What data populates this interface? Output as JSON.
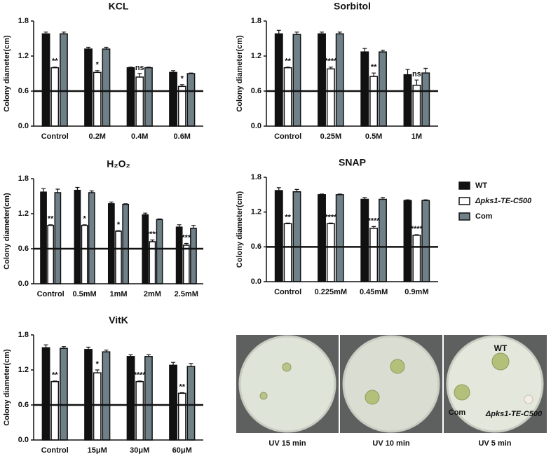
{
  "chart_data": [
    {
      "type": "bar",
      "title": "KCL",
      "ylabel": "Colony diameter(cm)",
      "categories": [
        "Control",
        "0.2M",
        "0.4M",
        "0.6M"
      ],
      "series": [
        {
          "values": [
            1.58,
            1.32,
            1.0,
            0.92
          ],
          "errors": [
            0.03,
            0.03,
            0.01,
            0.03
          ]
        },
        {
          "values": [
            1.0,
            0.92,
            0.84,
            0.68
          ],
          "errors": [
            0.01,
            0.03,
            0.06,
            0.03
          ]
        },
        {
          "values": [
            1.58,
            1.32,
            1.0,
            0.9
          ],
          "errors": [
            0.03,
            0.03,
            0.01,
            0.01
          ]
        }
      ],
      "annotations": [
        "**",
        "*",
        "ns",
        "*"
      ],
      "hline": 0.6,
      "ylim": [
        0,
        1.8
      ],
      "yticks": [
        {
          "value": 0,
          "label": "0.0"
        },
        0.6,
        1.2,
        1.8
      ]
    },
    {
      "type": "bar",
      "title": "Sorbitol",
      "ylabel": "Colony diameter(cm)",
      "categories": [
        "Control",
        "0.25M",
        "0.5M",
        "1M"
      ],
      "series": [
        {
          "values": [
            1.58,
            1.58,
            1.27,
            0.88
          ],
          "errors": [
            0.06,
            0.03,
            0.06,
            0.09
          ]
        },
        {
          "values": [
            1.0,
            0.98,
            0.85,
            0.7
          ],
          "errors": [
            0.01,
            0.03,
            0.06,
            0.09
          ]
        },
        {
          "values": [
            1.57,
            1.58,
            1.27,
            0.91
          ],
          "errors": [
            0.04,
            0.03,
            0.03,
            0.08
          ]
        }
      ],
      "annotations": [
        "**",
        "****",
        "**",
        "ns"
      ],
      "hline": 0.6,
      "ylim": [
        0,
        1.8
      ],
      "yticks": [
        {
          "value": 0,
          "label": "0.0"
        },
        0.6,
        1.2,
        1.8
      ]
    },
    {
      "type": "bar",
      "title": "H₂O₂",
      "ylabel": "Colony diameter(cm)",
      "categories": [
        "Control",
        "0.5mM",
        "1mM",
        "2mM",
        "2.5mM"
      ],
      "series": [
        {
          "values": [
            1.57,
            1.6,
            1.37,
            1.18,
            0.97
          ],
          "errors": [
            0.06,
            0.05,
            0.03,
            0.03,
            0.04
          ]
        },
        {
          "values": [
            1.0,
            1.0,
            0.9,
            0.72,
            0.66
          ],
          "errors": [
            0.01,
            0.01,
            0.01,
            0.03,
            0.03
          ]
        },
        {
          "values": [
            1.56,
            1.56,
            1.36,
            1.1,
            0.95
          ],
          "errors": [
            0.06,
            0.03,
            0.01,
            0.01,
            0.05
          ]
        }
      ],
      "annotations": [
        "**",
        "*",
        "*",
        "****",
        "***"
      ],
      "hline": 0.6,
      "ylim": [
        0,
        1.8
      ],
      "yticks": [
        {
          "value": 0,
          "label": "0.0"
        },
        0.6,
        1.2,
        1.8
      ]
    },
    {
      "type": "bar",
      "title": "SNAP",
      "ylabel": "Colony diameter(cm)",
      "categories": [
        "Control",
        "0.225mM",
        "0.45mM",
        "0.9mM"
      ],
      "series": [
        {
          "values": [
            1.57,
            1.5,
            1.42,
            1.4
          ],
          "errors": [
            0.05,
            0.01,
            0.03,
            0.01
          ]
        },
        {
          "values": [
            1.0,
            1.0,
            0.92,
            0.8
          ],
          "errors": [
            0.01,
            0.01,
            0.03,
            0.01
          ]
        },
        {
          "values": [
            1.55,
            1.5,
            1.42,
            1.4
          ],
          "errors": [
            0.04,
            0.01,
            0.03,
            0.01
          ]
        }
      ],
      "annotations": [
        "**",
        "****",
        "****",
        "****"
      ],
      "hline": 0.6,
      "ylim": [
        0,
        1.8
      ],
      "yticks": [
        {
          "value": 0,
          "label": "0.0"
        },
        0.6,
        1.2,
        1.8
      ]
    },
    {
      "type": "bar",
      "title": "VitK",
      "ylabel": "Colony diameter(cm)",
      "categories": [
        "Control",
        "15μM",
        "30μM",
        "60μM"
      ],
      "series": [
        {
          "values": [
            1.58,
            1.55,
            1.43,
            1.28
          ],
          "errors": [
            0.05,
            0.04,
            0.03,
            0.05
          ]
        },
        {
          "values": [
            1.0,
            1.15,
            1.0,
            0.8
          ],
          "errors": [
            0.01,
            0.05,
            0.01,
            0.01
          ]
        },
        {
          "values": [
            1.57,
            1.51,
            1.43,
            1.26
          ],
          "errors": [
            0.03,
            0.03,
            0.03,
            0.05
          ]
        }
      ],
      "annotations": [
        "**",
        "*",
        "****",
        "**"
      ],
      "hline": 0.6,
      "ylim": [
        0,
        1.8
      ],
      "yticks": [
        {
          "value": 0,
          "label": "0.0"
        },
        0.6,
        1.2,
        1.8
      ]
    }
  ],
  "legend": [
    {
      "name": "WT",
      "color": "#111111"
    },
    {
      "name": "Δpks1-TE-C500",
      "color": "#ffffff"
    },
    {
      "name": "Com",
      "color": "#6f8088"
    }
  ],
  "photos": {
    "captions": [
      "UV 15 min",
      "UV 10 min",
      "UV 5 min"
    ],
    "labels": [
      "WT",
      "Com",
      "Δpks1-TE-C500"
    ]
  }
}
